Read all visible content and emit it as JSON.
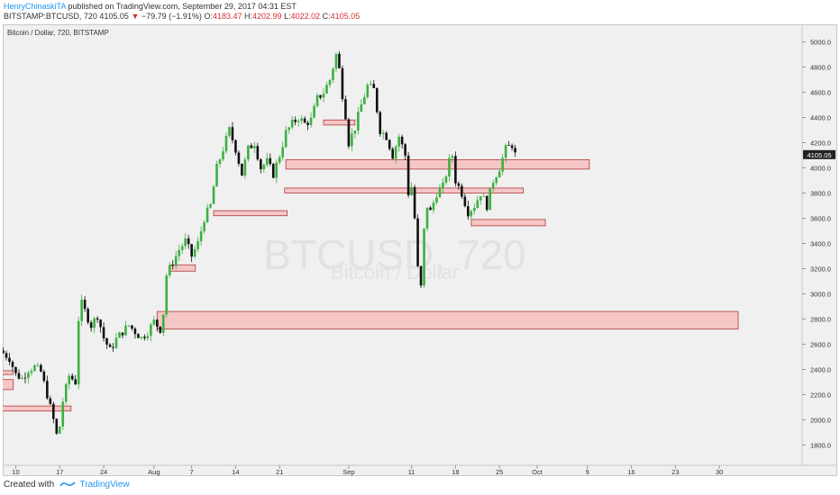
{
  "header": {
    "author": "HenryChinaskiTA",
    "published_text": "published on TradingView.com, September 29, 2017 04:31 EST",
    "symbol_line": "BITSTAMP:BTCUSD, 720",
    "last": "4105.05",
    "change_arrow": "▼",
    "change": "−79.79 (−1.91%)",
    "o_label": "O:",
    "o_value": "4183.47",
    "h_label": "H:",
    "h_value": "4202.99",
    "l_label": "L:",
    "l_value": "4022.02",
    "c_label": "C:",
    "c_value": "4105.05"
  },
  "chart_title": "Bitcoin / Dollar, 720, BITSTAMP",
  "footer": {
    "created_with": "Created with",
    "brand": "TradingView"
  },
  "watermark": {
    "line1": "BTCUSD, 720",
    "line2": "Bitcoin / Dollar"
  },
  "colors": {
    "up": "#3cb043",
    "down": "#111111",
    "zone_fill": "#f5c6c6",
    "zone_stroke": "#b03a3a",
    "price_label_bg": "#222222",
    "background": "#f0f0f0"
  },
  "chart_data": {
    "type": "candlestick",
    "title": "Bitcoin / Dollar, 720, BITSTAMP",
    "symbol": "BITSTAMP:BTCUSD",
    "interval": "720",
    "ylim": [
      1700,
      5100
    ],
    "y_ticks": [
      1800,
      2000,
      2200,
      2400,
      2600,
      2800,
      3000,
      3200,
      3400,
      3600,
      3800,
      4000,
      4200,
      4400,
      4600,
      4800,
      5000
    ],
    "x_ticks": [
      {
        "label": "10",
        "day": 10
      },
      {
        "label": "17",
        "day": 17
      },
      {
        "label": "24",
        "day": 24
      },
      {
        "label": "Aug",
        "day": 32
      },
      {
        "label": "7",
        "day": 38
      },
      {
        "label": "14",
        "day": 45
      },
      {
        "label": "21",
        "day": 52
      },
      {
        "label": "Sep",
        "day": 63
      },
      {
        "label": "11",
        "day": 73
      },
      {
        "label": "18",
        "day": 80
      },
      {
        "label": "25",
        "day": 87
      },
      {
        "label": "Oct",
        "day": 93
      },
      {
        "label": "9",
        "day": 101
      },
      {
        "label": "16",
        "day": 108
      },
      {
        "label": "23",
        "day": 115
      },
      {
        "label": "30",
        "day": 122
      }
    ],
    "x_axis_note": "day number counted from 1 July 2017",
    "last_price": 4105.05,
    "close_path": [
      [
        7.5,
        2550
      ],
      [
        9,
        2490
      ],
      [
        10,
        2360
      ],
      [
        11,
        2330
      ],
      [
        12,
        2400
      ],
      [
        13,
        2420
      ],
      [
        14,
        2380
      ],
      [
        15,
        2200
      ],
      [
        16,
        2000
      ],
      [
        16.5,
        1880
      ],
      [
        17,
        1950
      ],
      [
        17.5,
        2150
      ],
      [
        18,
        2250
      ],
      [
        18.5,
        2350
      ],
      [
        19.5,
        2300
      ],
      [
        20,
        2800
      ],
      [
        20.5,
        2920
      ],
      [
        22,
        2750
      ],
      [
        23,
        2830
      ],
      [
        24,
        2650
      ],
      [
        25,
        2550
      ],
      [
        26,
        2640
      ],
      [
        27,
        2700
      ],
      [
        28,
        2750
      ],
      [
        29,
        2700
      ],
      [
        30,
        2650
      ],
      [
        31,
        2700
      ],
      [
        32,
        2780
      ],
      [
        33,
        2720
      ],
      [
        33.5,
        2850
      ],
      [
        34,
        3150
      ],
      [
        35,
        3250
      ],
      [
        36,
        3350
      ],
      [
        37,
        3420
      ],
      [
        38,
        3300
      ],
      [
        39,
        3400
      ],
      [
        40,
        3600
      ],
      [
        41,
        3700
      ],
      [
        42,
        4000
      ],
      [
        43,
        4150
      ],
      [
        44,
        4300
      ],
      [
        45,
        4150
      ],
      [
        46,
        3950
      ],
      [
        47,
        4150
      ],
      [
        48,
        4200
      ],
      [
        49,
        4000
      ],
      [
        50,
        4050
      ],
      [
        51,
        3950
      ],
      [
        52,
        4100
      ],
      [
        53,
        4280
      ],
      [
        54,
        4350
      ],
      [
        55,
        4400
      ],
      [
        56,
        4350
      ],
      [
        57,
        4380
      ],
      [
        58,
        4550
      ],
      [
        59,
        4600
      ],
      [
        60,
        4700
      ],
      [
        61,
        4900
      ],
      [
        61.5,
        4780
      ],
      [
        62,
        4580
      ],
      [
        62.5,
        4420
      ],
      [
        63,
        4200
      ],
      [
        64,
        4320
      ],
      [
        65,
        4500
      ],
      [
        66,
        4650
      ],
      [
        67,
        4620
      ],
      [
        68,
        4300
      ],
      [
        69,
        4250
      ],
      [
        70,
        4100
      ],
      [
        71,
        4250
      ],
      [
        72,
        4100
      ],
      [
        72.5,
        3800
      ],
      [
        73,
        3850
      ],
      [
        73.5,
        3600
      ],
      [
        74,
        3200
      ],
      [
        74.5,
        3050
      ],
      [
        75,
        3500
      ],
      [
        75.5,
        3700
      ],
      [
        76,
        3650
      ],
      [
        77,
        3800
      ],
      [
        78,
        3850
      ],
      [
        79,
        4050
      ],
      [
        79.5,
        4100
      ],
      [
        80,
        3900
      ],
      [
        81,
        3800
      ],
      [
        82,
        3650
      ],
      [
        83,
        3700
      ],
      [
        84,
        3800
      ],
      [
        85,
        3700
      ],
      [
        86,
        3900
      ],
      [
        87,
        4000
      ],
      [
        88,
        4150
      ],
      [
        89,
        4184
      ],
      [
        89.5,
        4105.05
      ]
    ],
    "zones": [
      {
        "day_from": 7.2,
        "day_to": 9.6,
        "y_from": 2240,
        "y_to": 2320
      },
      {
        "day_from": 7.2,
        "day_to": 9.6,
        "y_from": 2360,
        "y_to": 2390
      },
      {
        "day_from": 7.2,
        "day_to": 18.8,
        "y_from": 2070,
        "y_to": 2110
      },
      {
        "day_from": 32.5,
        "day_to": 125,
        "y_from": 2720,
        "y_to": 2860
      },
      {
        "day_from": 34.5,
        "day_to": 38.6,
        "y_from": 3180,
        "y_to": 3230
      },
      {
        "day_from": 41.5,
        "day_to": 53.2,
        "y_from": 3620,
        "y_to": 3660
      },
      {
        "day_from": 52.8,
        "day_to": 90.8,
        "y_from": 3800,
        "y_to": 3840
      },
      {
        "day_from": 53.0,
        "day_to": 101.3,
        "y_from": 3990,
        "y_to": 4065
      },
      {
        "day_from": 59.0,
        "day_to": 64.0,
        "y_from": 4340,
        "y_to": 4380
      },
      {
        "day_from": 82.5,
        "day_to": 94.3,
        "y_from": 3540,
        "y_to": 3590
      }
    ]
  }
}
